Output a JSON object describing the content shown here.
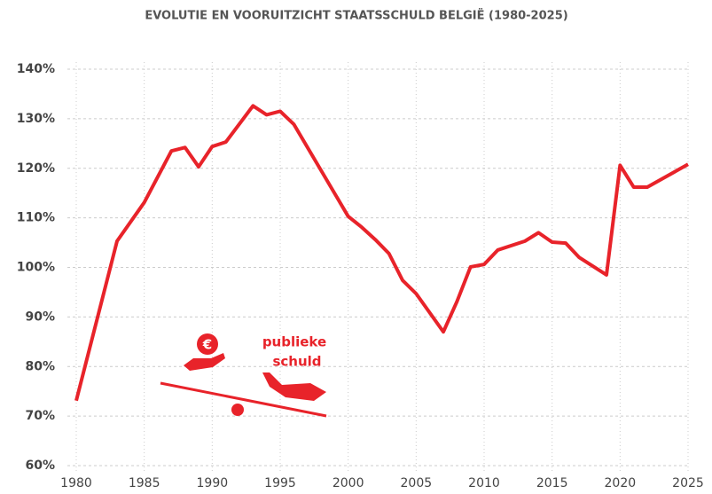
{
  "chart_data": {
    "type": "line",
    "title": "EVOLUTIE EN VOORUITZICHT STAATSSCHULD BELGIË (1980-2025)",
    "annotations": [
      "publieke",
      "schuld"
    ],
    "x": [
      1980,
      1983,
      1985,
      1987,
      1988,
      1989,
      1990,
      1991,
      1993,
      1994,
      1995,
      1996,
      2000,
      2001,
      2002,
      2003,
      2004,
      2005,
      2007,
      2008,
      2009,
      2010,
      2011,
      2013,
      2014,
      2015,
      2016,
      2017,
      2019,
      2020,
      2021,
      2022,
      2025
    ],
    "series": [
      {
        "color": "#e8232a",
        "values": [
          73.1,
          105.3,
          113.1,
          123.5,
          124.2,
          120.3,
          124.4,
          125.3,
          132.6,
          130.8,
          131.5,
          128.9,
          110.3,
          108.1,
          105.6,
          102.8,
          97.4,
          94.7,
          87.0,
          93.1,
          100.1,
          100.6,
          103.5,
          105.3,
          107.0,
          105.1,
          104.9,
          102.0,
          98.5,
          120.6,
          116.2,
          116.2,
          120.8
        ]
      }
    ],
    "xlim": [
      1980,
      2025
    ],
    "xticks": [
      1980,
      1985,
      1990,
      1995,
      2000,
      2005,
      2010,
      2015,
      2020,
      2025
    ],
    "ylim": [
      60,
      140
    ],
    "yticks": [
      {
        "value": 60,
        "label": "60%"
      },
      {
        "value": 70,
        "label": "70%"
      },
      {
        "value": 80,
        "label": "80%"
      },
      {
        "value": 90,
        "label": "90%"
      },
      {
        "value": 100,
        "label": "100%"
      },
      {
        "value": 110,
        "label": "110%"
      },
      {
        "value": 120,
        "label": "120%"
      },
      {
        "value": 130,
        "label": "130%"
      },
      {
        "value": 140,
        "label": "140%"
      }
    ],
    "grid": true
  }
}
